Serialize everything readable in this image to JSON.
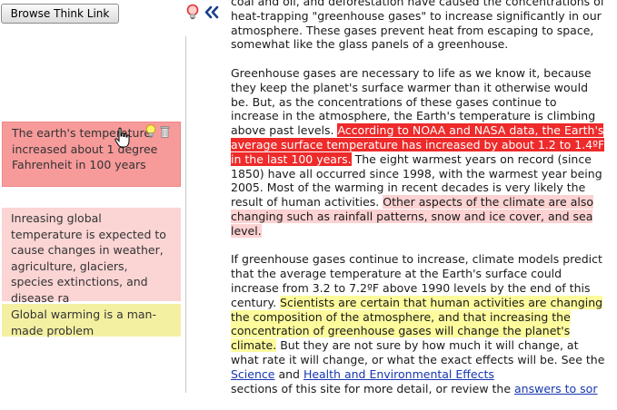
{
  "sidebar": {
    "browse_button": "Browse Think Link",
    "notes": [
      {
        "text": "The earth's temperature increased about 1 degree Fahrenheit in 100 years"
      },
      {
        "text": "Inreasing global temperature is expected to cause changes in weather, agriculture, glaciers, species extinctions, and disease ra"
      },
      {
        "text": "Global warming is a man-made problem"
      }
    ]
  },
  "article": {
    "p1": "coal and oil, and deforestation have caused the concentrations of heat-trapping \"greenhouse gases\" to increase significantly in our atmosphere. These gases prevent heat from escaping to space, somewhat like the glass panels of a greenhouse.",
    "p2_a": "Greenhouse gases are necessary to life as we know it, because they keep the planet's surface warmer than it otherwise would be. But, as the concentrations of these gases continue to increase in the atmosphere, the Earth's temperature is climbing above past levels. ",
    "p2_hl_red": "According to NOAA and NASA data, the Earth's average surface temperature has increased by about 1.2 to 1.4ºF in the last 100 years.",
    "p2_b": " The eight warmest years on record (since 1850) have all occurred since 1998, with the warmest year being 2005. Most of the warming in recent decades is very likely the result of human activities. ",
    "p2_hl_pink": "Other aspects of the climate are also changing such as rainfall patterns, snow and ice cover, and sea level.",
    "p3_a": "If greenhouse gases continue to increase, climate models predict that the average temperature at the Earth's surface could increase from 3.2 to 7.2ºF above 1990 levels by the end of this century. ",
    "p3_hl_yellow": "Scientists are certain that human activities are changing the composition of the atmosphere, and that increasing the concentration of greenhouse gases will change the planet's climate.",
    "p3_b": " But they are not sure by how much it will change, at what rate it will change, or what the exact effects will be. See the ",
    "link_science": "Science",
    "p3_c": " and ",
    "link_health": "Health and Environmental Effects",
    "p3_d": " sections of this site for more detail, or review the ",
    "link_answers": "answers to sor"
  },
  "colors": {
    "highlight_red": "#ee2a2a",
    "highlight_pink": "#fcd2d2",
    "highlight_yellow": "#fdfb9c",
    "note1_bg": "#f79a9a",
    "note2_bg": "#fbd4d4",
    "note3_bg": "#f4f0a2",
    "link": "#1636b0"
  },
  "icons": [
    "lightbulb-red-icon",
    "collapse-double-chevron-icon",
    "lightbulb-yellow-icon",
    "trash-icon",
    "hand-cursor-icon"
  ]
}
